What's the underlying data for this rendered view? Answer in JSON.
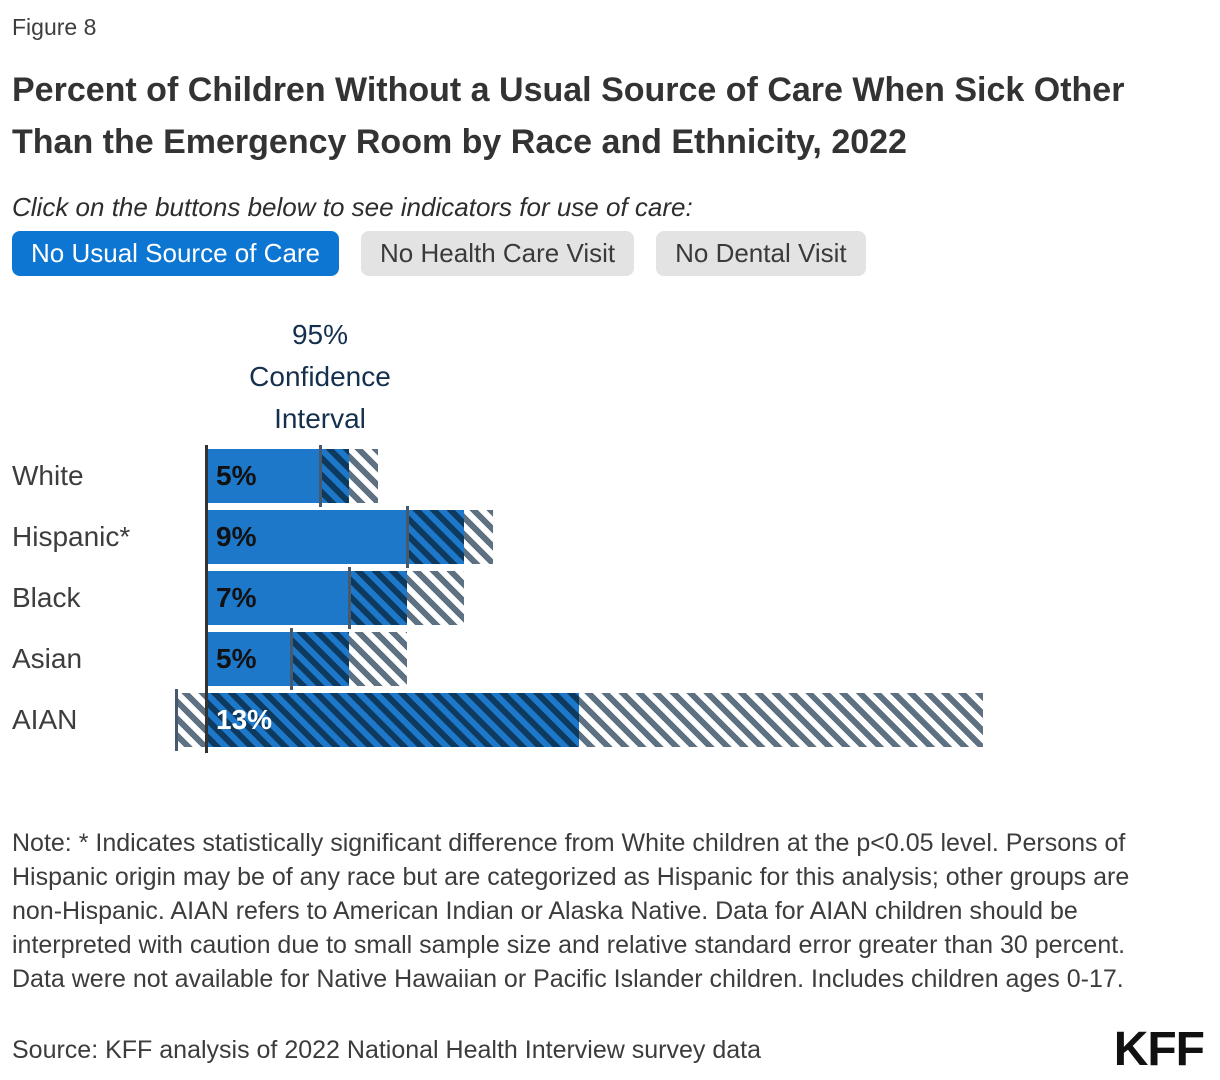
{
  "figure_label": "Figure 8",
  "title": "Percent of Children Without a Usual Source of Care When Sick Other Than the Emergency Room by Race and Ethnicity, 2022",
  "instruction": "Click on the buttons below to see indicators for use of care:",
  "buttons": [
    {
      "label": "No Usual Source of Care",
      "active": true
    },
    {
      "label": "No Health Care Visit",
      "active": false
    },
    {
      "label": "No Dental Visit",
      "active": false
    }
  ],
  "button_colors": {
    "active_bg": "#0d76d3",
    "active_text": "#ffffff",
    "inactive_bg": "#e3e3e3",
    "inactive_text": "#3a3a3a"
  },
  "chart_data": {
    "type": "bar",
    "orientation": "horizontal",
    "ci_label_lines": [
      "95%",
      "Confidence",
      "Interval"
    ],
    "categories": [
      "White",
      "Hispanic*",
      "Black",
      "Asian",
      "AIAN"
    ],
    "values": [
      5,
      9,
      7,
      5,
      13
    ],
    "xlim": [
      0,
      27
    ],
    "grid": false,
    "rows": [
      {
        "category": "White",
        "value": 5,
        "label": "5%",
        "ci_low": 4,
        "ci_high": 6,
        "label_color": "#111111"
      },
      {
        "category": "Hispanic*",
        "value": 9,
        "label": "9%",
        "ci_low": 7,
        "ci_high": 10,
        "label_color": "#111111"
      },
      {
        "category": "Black",
        "value": 7,
        "label": "7%",
        "ci_low": 5,
        "ci_high": 9,
        "label_color": "#111111"
      },
      {
        "category": "Asian",
        "value": 5,
        "label": "5%",
        "ci_low": 3,
        "ci_high": 7,
        "label_color": "#111111"
      },
      {
        "category": "AIAN",
        "value": 13,
        "label": "13%",
        "ci_low": -1,
        "ci_high": 27,
        "label_color": "#ffffff"
      }
    ],
    "colors": {
      "bar": "#1e78ca",
      "ci_hatch_dark": "#0e3a5f",
      "ci_hatch_gray": "#5e7183",
      "ci_edge": "#47596d",
      "axis": "#333333",
      "ci_label_text": "#14304e"
    }
  },
  "note": "Note: * Indicates statistically significant difference from White children at the p<0.05 level. Persons of Hispanic origin may be of any race but are categorized as Hispanic for this analysis; other groups are non-Hispanic. AIAN refers to American Indian or Alaska Native. Data for AIAN children should be interpreted with caution due to small sample size and relative standard error greater than 30 percent. Data were not available for Native Hawaiian or Pacific Islander children. Includes children ages 0-17.",
  "source": "Source: KFF analysis of 2022 National Health Interview survey data",
  "logo": "KFF"
}
